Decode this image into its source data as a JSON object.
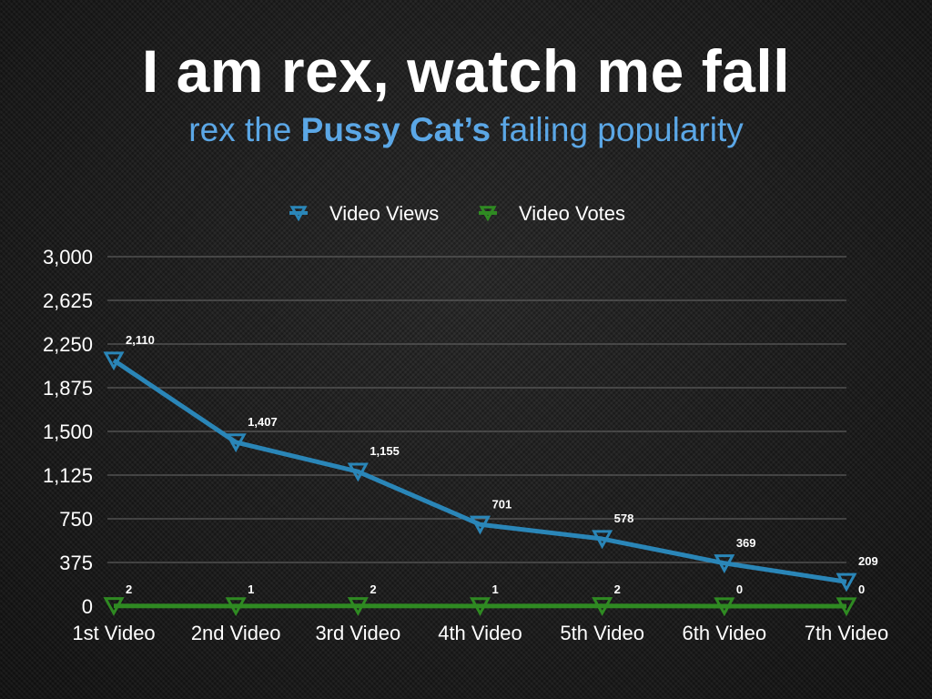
{
  "title": "I am rex, watch me fall",
  "subtitle": {
    "before": "rex the ",
    "bold": "Pussy Cat’s",
    "after": " failing popularity"
  },
  "colors": {
    "background": "#1c1c1c",
    "title": "#ffffff",
    "subtitle": "#5ba7e6",
    "views": "#2a86b8",
    "votes": "#2f8a22",
    "grid": "#6a6a6a",
    "text": "#ffffff"
  },
  "chart_data": {
    "type": "line",
    "categories": [
      "1st Video",
      "2nd Video",
      "3rd Video",
      "4th Video",
      "5th Video",
      "6th Video",
      "7th Video"
    ],
    "series": [
      {
        "name": "Video Views",
        "values": [
          2110,
          1407,
          1155,
          701,
          578,
          369,
          209
        ],
        "labels": [
          "2,110",
          "1,407",
          "1,155",
          "701",
          "578",
          "369",
          "209"
        ],
        "color": "#2a86b8",
        "marker": "triangle-down"
      },
      {
        "name": "Video Votes",
        "values": [
          2,
          1,
          2,
          1,
          2,
          0,
          0
        ],
        "labels": [
          "2",
          "1",
          "2",
          "1",
          "2",
          "0",
          "0"
        ],
        "color": "#2f8a22",
        "marker": "triangle-down"
      }
    ],
    "yticks": [
      "0",
      "375",
      "750",
      "1,125",
      "1,500",
      "1,875",
      "2,250",
      "2,625",
      "3,000"
    ],
    "ylim": [
      0,
      3000
    ],
    "grid": true,
    "legend": "top-center"
  }
}
